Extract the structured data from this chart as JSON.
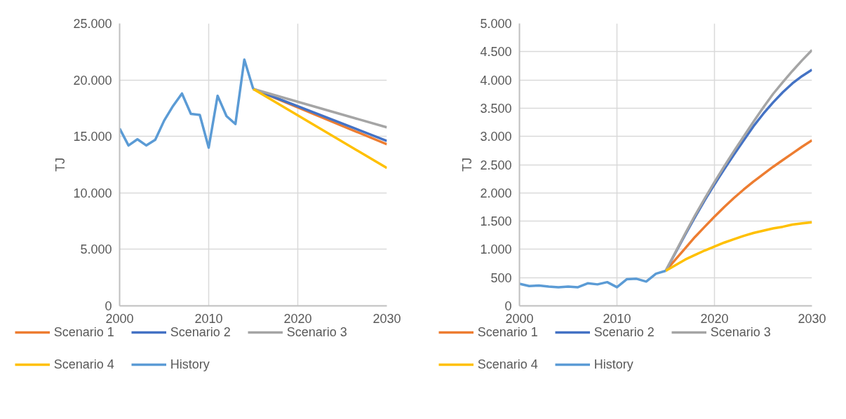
{
  "chart_data": [
    {
      "type": "line",
      "ylabel": "TJ",
      "xlim": [
        2000,
        2030
      ],
      "xticks": [
        2000,
        2010,
        2020,
        2030
      ],
      "ylim": [
        0,
        25000
      ],
      "yticks": [
        0,
        {
          "value": 5000,
          "label": "5.000"
        },
        {
          "value": 10000,
          "label": "10.000"
        },
        {
          "value": 15000,
          "label": "15.000"
        },
        {
          "value": 20000,
          "label": "20.000"
        },
        {
          "value": 25000,
          "label": "25.000"
        }
      ],
      "grid": true,
      "legend": "bottom",
      "line_style": "solid",
      "series": [
        {
          "name": "Scenario 1",
          "color": "#ed7d31",
          "x": [
            2015,
            2030
          ],
          "values": [
            19200,
            14300
          ]
        },
        {
          "name": "Scenario 2",
          "color": "#4472c4",
          "x": [
            2015,
            2030
          ],
          "values": [
            19200,
            14600
          ]
        },
        {
          "name": "Scenario 3",
          "color": "#a5a5a5",
          "x": [
            2015,
            2030
          ],
          "values": [
            19200,
            15800
          ]
        },
        {
          "name": "Scenario 4",
          "color": "#ffc000",
          "x": [
            2015,
            2030
          ],
          "values": [
            19200,
            12200
          ]
        },
        {
          "name": "History",
          "color": "#5b9bd5",
          "x": [
            2000,
            2001,
            2002,
            2003,
            2004,
            2005,
            2006,
            2007,
            2008,
            2009,
            2010,
            2011,
            2012,
            2013,
            2014,
            2015
          ],
          "values": [
            15700,
            14200,
            14750,
            14200,
            14700,
            16400,
            17700,
            18800,
            17000,
            16900,
            14000,
            18600,
            16800,
            16100,
            21800,
            19200
          ]
        }
      ]
    },
    {
      "type": "line",
      "ylabel": "TJ",
      "xlim": [
        2000,
        2030
      ],
      "xticks": [
        2000,
        2010,
        2020,
        2030
      ],
      "ylim": [
        0,
        5000
      ],
      "yticks": [
        0,
        500,
        {
          "value": 1000,
          "label": "1.000"
        },
        {
          "value": 1500,
          "label": "1.500"
        },
        {
          "value": 2000,
          "label": "2.000"
        },
        {
          "value": 2500,
          "label": "2.500"
        },
        {
          "value": 3000,
          "label": "3.000"
        },
        {
          "value": 3500,
          "label": "3.500"
        },
        {
          "value": 4000,
          "label": "4.000"
        },
        {
          "value": 4500,
          "label": "4.500"
        },
        {
          "value": 5000,
          "label": "5.000"
        }
      ],
      "grid": true,
      "legend": "bottom",
      "line_style": "solid",
      "series": [
        {
          "name": "Scenario 1",
          "color": "#ed7d31",
          "x": [
            2015,
            2016,
            2017,
            2018,
            2019,
            2020,
            2021,
            2022,
            2023,
            2024,
            2025,
            2026,
            2027,
            2028,
            2029,
            2030
          ],
          "values": [
            620,
            820,
            1020,
            1220,
            1400,
            1580,
            1750,
            1910,
            2060,
            2200,
            2330,
            2460,
            2580,
            2700,
            2820,
            2930
          ]
        },
        {
          "name": "Scenario 2",
          "color": "#4472c4",
          "x": [
            2015,
            2016,
            2017,
            2018,
            2019,
            2020,
            2021,
            2022,
            2023,
            2024,
            2025,
            2026,
            2027,
            2028,
            2029,
            2030
          ],
          "values": [
            620,
            940,
            1260,
            1570,
            1870,
            2150,
            2420,
            2680,
            2930,
            3180,
            3400,
            3600,
            3780,
            3940,
            4070,
            4180
          ]
        },
        {
          "name": "Scenario 3",
          "color": "#a5a5a5",
          "x": [
            2015,
            2016,
            2017,
            2018,
            2019,
            2020,
            2021,
            2022,
            2023,
            2024,
            2025,
            2026,
            2027,
            2028,
            2029,
            2030
          ],
          "values": [
            620,
            950,
            1280,
            1600,
            1900,
            2190,
            2470,
            2740,
            3000,
            3260,
            3510,
            3750,
            3960,
            4160,
            4350,
            4530
          ]
        },
        {
          "name": "Scenario 4",
          "color": "#ffc000",
          "x": [
            2015,
            2016,
            2017,
            2018,
            2019,
            2020,
            2021,
            2022,
            2023,
            2024,
            2025,
            2026,
            2027,
            2028,
            2029,
            2030
          ],
          "values": [
            620,
            720,
            820,
            900,
            980,
            1050,
            1120,
            1180,
            1240,
            1290,
            1330,
            1370,
            1400,
            1440,
            1460,
            1480
          ]
        },
        {
          "name": "History",
          "color": "#5b9bd5",
          "x": [
            2000,
            2001,
            2002,
            2003,
            2004,
            2005,
            2006,
            2007,
            2008,
            2009,
            2010,
            2011,
            2012,
            2013,
            2014,
            2015
          ],
          "values": [
            390,
            350,
            360,
            340,
            330,
            340,
            330,
            400,
            380,
            420,
            330,
            470,
            480,
            430,
            570,
            620
          ]
        }
      ]
    }
  ]
}
